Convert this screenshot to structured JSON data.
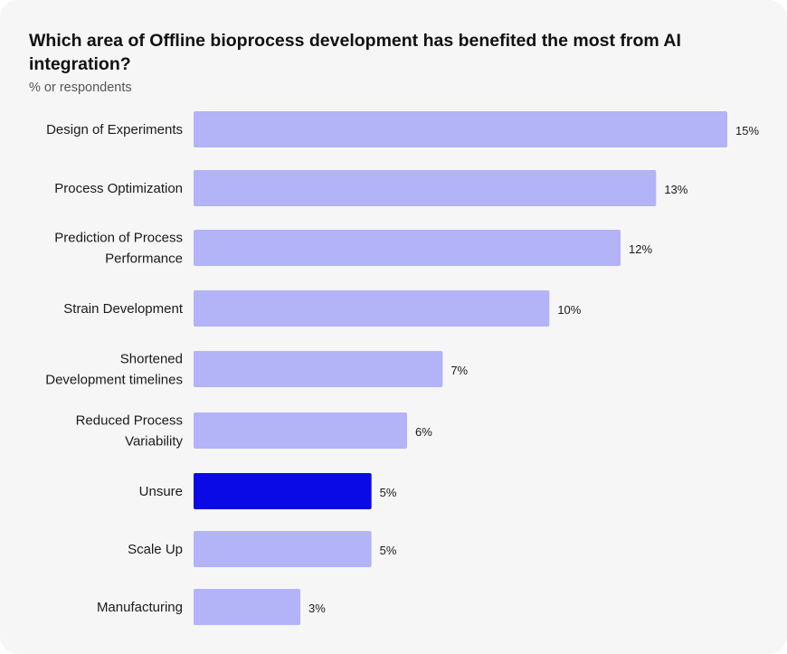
{
  "title": "Which area of Offline bioprocess development has benefited the most from AI integration?",
  "subtitle": "% or respondents",
  "colors": {
    "default_bar": "#b3b3f7",
    "highlight_bar": "#0a0ae6",
    "card_background": "#f6f6f7"
  },
  "chart_data": {
    "type": "bar",
    "orientation": "horizontal",
    "title": "Which area of Offline bioprocess development has benefited the most from AI integration?",
    "subtitle": "% or respondents",
    "xlabel": "",
    "ylabel": "",
    "xlim": [
      0,
      15
    ],
    "grid": false,
    "legend": "none",
    "categories": [
      [
        "Design of Experiments"
      ],
      [
        "Process Optimization"
      ],
      [
        "Prediction of Process",
        "Performance"
      ],
      [
        "Strain Development"
      ],
      [
        "Shortened",
        "Development timelines"
      ],
      [
        "Reduced Process",
        "Variability"
      ],
      [
        "Unsure"
      ],
      [
        "Scale Up"
      ],
      [
        "Manufacturing"
      ]
    ],
    "values": [
      15,
      13,
      12,
      10,
      7,
      6,
      5,
      5,
      3
    ],
    "value_labels": [
      "15%",
      "13%",
      "12%",
      "10%",
      "7%",
      "6%",
      "5%",
      "5%",
      "3%"
    ],
    "highlighted": [
      false,
      false,
      false,
      false,
      false,
      false,
      true,
      false,
      false
    ]
  }
}
